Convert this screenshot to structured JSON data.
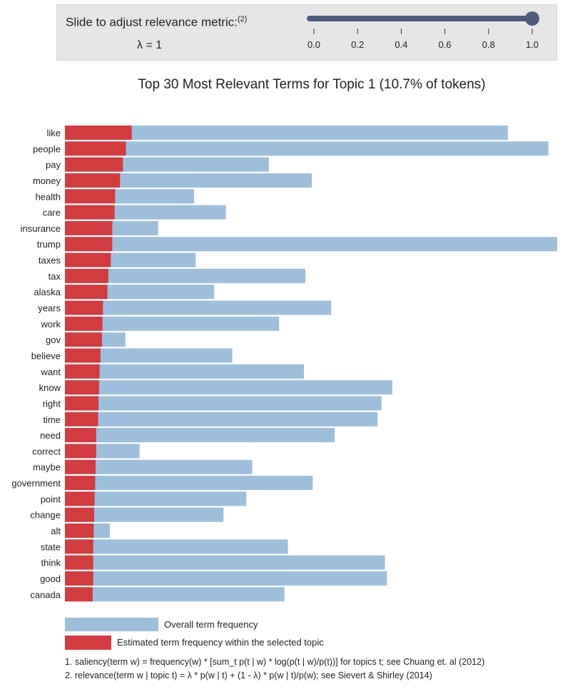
{
  "slider": {
    "label": "Slide to adjust relevance metric:",
    "label_sup": "(2)",
    "readout": "λ = 1",
    "value": 1.0,
    "min": 0.0,
    "max": 1.0,
    "ticks": [
      "0.0",
      "0.2",
      "0.4",
      "0.6",
      "0.8",
      "1.0"
    ]
  },
  "legend": {
    "overall": "Overall term frequency",
    "estimated": "Estimated term frequency within the selected topic"
  },
  "footnotes": {
    "note1": "1. saliency(term w) = frequency(w) * [sum_t p(t | w) * log(p(t | w)/p(t))] for topics t; see Chuang et. al (2012)",
    "note2": "2. relevance(term w | topic t) = λ * p(w | t) + (1 - λ) * p(w | t)/p(w); see Sievert & Shirley (2014)"
  },
  "colors": {
    "overall": "#9dbfdc",
    "estimated": "#d13c40",
    "slider_track": "#4f5a7c",
    "panel": "#e6e6e6"
  },
  "chart_data": {
    "type": "bar",
    "orientation": "horizontal",
    "title": "Top 30 Most Relevant Terms for Topic 1 (10.7% of tokens)",
    "xlim": [
      0,
      11
    ],
    "categories": [
      "like",
      "people",
      "pay",
      "money",
      "health",
      "care",
      "insurance",
      "trump",
      "taxes",
      "tax",
      "alaska",
      "years",
      "work",
      "gov",
      "believe",
      "want",
      "know",
      "right",
      "time",
      "need",
      "correct",
      "maybe",
      "government",
      "point",
      "change",
      "alt",
      "state",
      "think",
      "good",
      "canada"
    ],
    "series": [
      {
        "name": "Overall term frequency",
        "values": [
          9.08,
          9.91,
          4.18,
          5.06,
          2.65,
          3.3,
          1.91,
          10.09,
          2.68,
          4.93,
          3.06,
          5.46,
          4.39,
          1.24,
          3.43,
          4.9,
          6.71,
          6.49,
          6.41,
          5.53,
          1.53,
          3.84,
          5.08,
          3.72,
          3.25,
          0.92,
          4.57,
          6.56,
          6.6,
          4.5
        ]
      },
      {
        "name": "Estimated term frequency within the selected topic",
        "values": [
          1.37,
          1.25,
          1.19,
          1.13,
          1.03,
          1.02,
          0.97,
          0.97,
          0.94,
          0.89,
          0.87,
          0.78,
          0.77,
          0.76,
          0.73,
          0.71,
          0.7,
          0.69,
          0.68,
          0.64,
          0.64,
          0.63,
          0.62,
          0.61,
          0.6,
          0.59,
          0.58,
          0.58,
          0.58,
          0.57
        ]
      }
    ]
  }
}
